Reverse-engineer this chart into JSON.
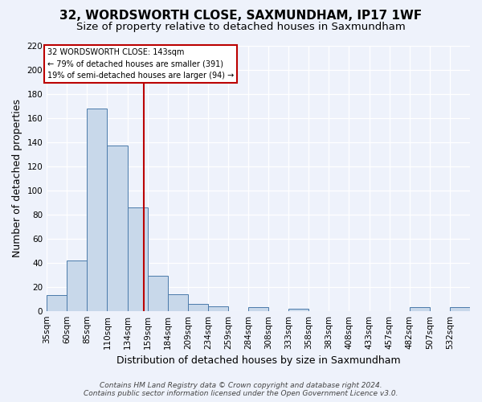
{
  "title": "32, WORDSWORTH CLOSE, SAXMUNDHAM, IP17 1WF",
  "subtitle": "Size of property relative to detached houses in Saxmundham",
  "xlabel": "Distribution of detached houses by size in Saxmundham",
  "ylabel": "Number of detached properties",
  "footer_line1": "Contains HM Land Registry data © Crown copyright and database right 2024.",
  "footer_line2": "Contains public sector information licensed under the Open Government Licence v3.0.",
  "bar_labels": [
    "35sqm",
    "60sqm",
    "85sqm",
    "110sqm",
    "134sqm",
    "159sqm",
    "184sqm",
    "209sqm",
    "234sqm",
    "259sqm",
    "284sqm",
    "308sqm",
    "333sqm",
    "358sqm",
    "383sqm",
    "408sqm",
    "433sqm",
    "457sqm",
    "482sqm",
    "507sqm",
    "532sqm"
  ],
  "bar_values": [
    13,
    42,
    168,
    137,
    86,
    29,
    14,
    6,
    4,
    0,
    3,
    0,
    2,
    0,
    0,
    0,
    0,
    0,
    3,
    0,
    3
  ],
  "bar_color": "#c8d8ea",
  "bar_edgecolor": "#4a7aaa",
  "background_color": "#eef2fb",
  "grid_color": "#ffffff",
  "vline_color": "#bb0000",
  "bin_width": 25,
  "ylim": [
    0,
    220
  ],
  "yticks": [
    0,
    20,
    40,
    60,
    80,
    100,
    120,
    140,
    160,
    180,
    200,
    220
  ],
  "annotation_text": "32 WORDSWORTH CLOSE: 143sqm\n← 79% of detached houses are smaller (391)\n19% of semi-detached houses are larger (94) →",
  "annotation_box_facecolor": "#ffffff",
  "annotation_box_edgecolor": "#bb0000",
  "title_fontsize": 11,
  "subtitle_fontsize": 9.5,
  "label_fontsize": 9,
  "tick_fontsize": 7.5,
  "annot_fontsize": 7,
  "footer_fontsize": 6.5,
  "vline_x_data": 143,
  "bin_left_edges": [
    22.5,
    47.5,
    72.5,
    97.5,
    122.5,
    147.5,
    172.5,
    197.5,
    222.5,
    247.5,
    272.5,
    297.5,
    322.5,
    347.5,
    372.5,
    397.5,
    422.5,
    447.5,
    472.5,
    497.5,
    522.5
  ],
  "xlim_left": 22.5,
  "xlim_right": 547.5
}
